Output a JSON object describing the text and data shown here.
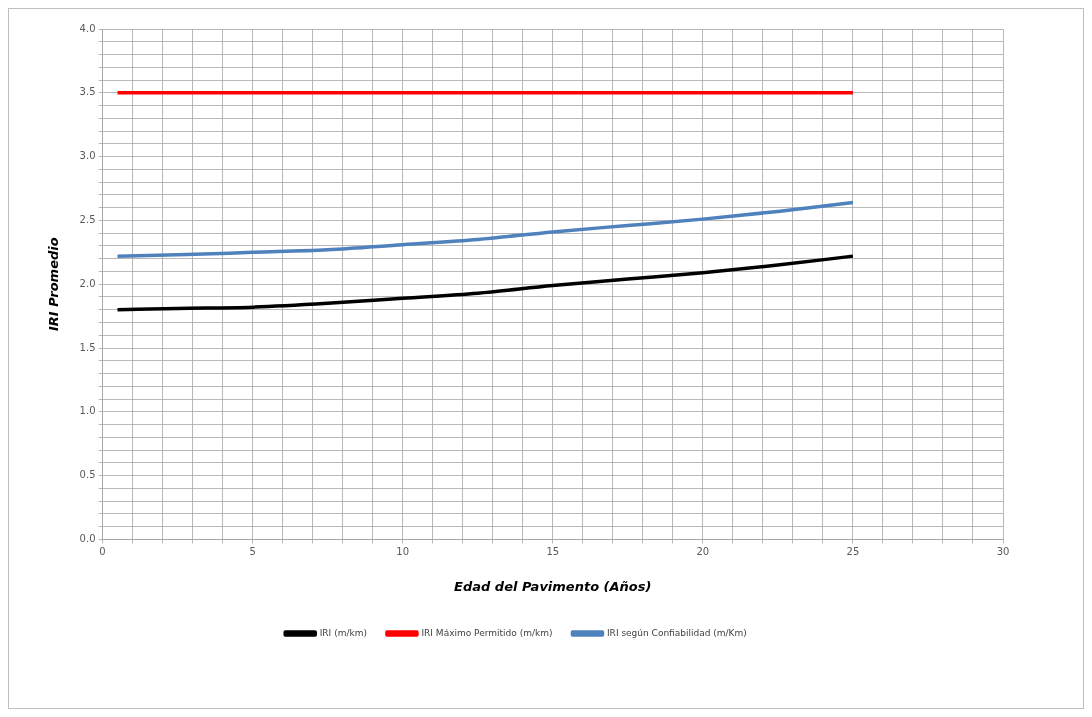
{
  "chart_data": {
    "type": "line",
    "xlabel": "Edad del Pavimento (Años)",
    "ylabel": "IRI Promedio",
    "x": [
      0.5,
      2.5,
      5,
      7.5,
      10,
      12.5,
      15,
      17.5,
      20,
      22.5,
      25
    ],
    "series": [
      {
        "name": "IRI (m/km)",
        "color": "#000000",
        "values": [
          1.8,
          1.81,
          1.82,
          1.85,
          1.89,
          1.93,
          1.99,
          2.04,
          2.09,
          2.15,
          2.22
        ]
      },
      {
        "name": "IRI Máximo Permitido (m/km)",
        "color": "#ff0000",
        "values": [
          3.5,
          3.5,
          3.5,
          3.5,
          3.5,
          3.5,
          3.5,
          3.5,
          3.5,
          3.5,
          3.5
        ]
      },
      {
        "name": "IRI según Confiabilidad (m/Km)",
        "color": "#4f81bd",
        "values": [
          2.22,
          2.23,
          2.25,
          2.27,
          2.31,
          2.35,
          2.41,
          2.46,
          2.51,
          2.57,
          2.64
        ]
      }
    ],
    "xlim": [
      0,
      30
    ],
    "xticks": [
      0,
      {
        "value": 1,
        "label": null
      },
      {
        "value": 2,
        "label": null
      },
      {
        "value": 3,
        "label": null
      },
      {
        "value": 4,
        "label": null
      },
      5,
      {
        "value": 6,
        "label": null
      },
      {
        "value": 7,
        "label": null
      },
      {
        "value": 8,
        "label": null
      },
      {
        "value": 9,
        "label": null
      },
      10,
      {
        "value": 11,
        "label": null
      },
      {
        "value": 12,
        "label": null
      },
      {
        "value": 13,
        "label": null
      },
      {
        "value": 14,
        "label": null
      },
      15,
      {
        "value": 16,
        "label": null
      },
      {
        "value": 17,
        "label": null
      },
      {
        "value": 18,
        "label": null
      },
      {
        "value": 19,
        "label": null
      },
      20,
      {
        "value": 21,
        "label": null
      },
      {
        "value": 22,
        "label": null
      },
      {
        "value": 23,
        "label": null
      },
      {
        "value": 24,
        "label": null
      },
      25,
      {
        "value": 26,
        "label": null
      },
      {
        "value": 27,
        "label": null
      },
      {
        "value": 28,
        "label": null
      },
      {
        "value": 29,
        "label": null
      },
      30
    ],
    "ylim": [
      0,
      4
    ],
    "yticks": [
      {
        "value": 0,
        "label": "0.0"
      },
      {
        "value": 0.1,
        "label": null
      },
      {
        "value": 0.2,
        "label": null
      },
      {
        "value": 0.3,
        "label": null
      },
      {
        "value": 0.4,
        "label": null
      },
      0.5,
      {
        "value": 0.6,
        "label": null
      },
      {
        "value": 0.7,
        "label": null
      },
      {
        "value": 0.8,
        "label": null
      },
      {
        "value": 0.9,
        "label": null
      },
      {
        "value": 1,
        "label": "1.0"
      },
      {
        "value": 1.1,
        "label": null
      },
      {
        "value": 1.2,
        "label": null
      },
      {
        "value": 1.3,
        "label": null
      },
      {
        "value": 1.4,
        "label": null
      },
      1.5,
      {
        "value": 1.6,
        "label": null
      },
      {
        "value": 1.7,
        "label": null
      },
      {
        "value": 1.8,
        "label": null
      },
      {
        "value": 1.9,
        "label": null
      },
      {
        "value": 2,
        "label": "2.0"
      },
      {
        "value": 2.1,
        "label": null
      },
      {
        "value": 2.2,
        "label": null
      },
      {
        "value": 2.3,
        "label": null
      },
      {
        "value": 2.4,
        "label": null
      },
      2.5,
      {
        "value": 2.6,
        "label": null
      },
      {
        "value": 2.7,
        "label": null
      },
      {
        "value": 2.8,
        "label": null
      },
      {
        "value": 2.9,
        "label": null
      },
      {
        "value": 3,
        "label": "3.0"
      },
      {
        "value": 3.1,
        "label": null
      },
      {
        "value": 3.2,
        "label": null
      },
      {
        "value": 3.3,
        "label": null
      },
      {
        "value": 3.4,
        "label": null
      },
      3.5,
      {
        "value": 3.6,
        "label": null
      },
      {
        "value": 3.7,
        "label": null
      },
      {
        "value": 3.8,
        "label": null
      },
      {
        "value": 3.9,
        "label": null
      },
      {
        "value": 4,
        "label": "4.0"
      }
    ],
    "grid": true,
    "legend": "bottom",
    "marker": "none",
    "line_style": "solid"
  }
}
